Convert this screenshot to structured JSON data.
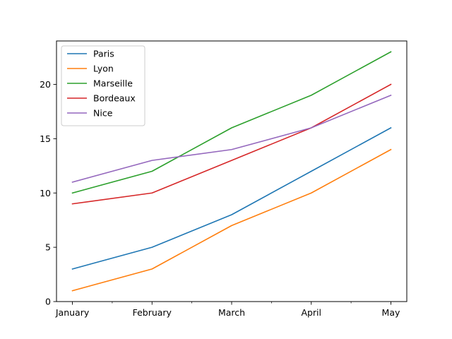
{
  "chart_data": {
    "type": "line",
    "title": "",
    "xlabel": "",
    "ylabel": "",
    "categories": [
      "January",
      "February",
      "March",
      "April",
      "May"
    ],
    "ylim": [
      0,
      24
    ],
    "yticks": [
      0,
      5,
      10,
      15,
      20
    ],
    "grid": false,
    "legend_position": "upper-left",
    "series": [
      {
        "name": "Paris",
        "color": "#1f77b4",
        "values": [
          3,
          5,
          8,
          12,
          16
        ]
      },
      {
        "name": "Lyon",
        "color": "#ff7f0e",
        "values": [
          1,
          3,
          7,
          10,
          14
        ]
      },
      {
        "name": "Marseille",
        "color": "#2ca02c",
        "values": [
          10,
          12,
          16,
          19,
          23
        ]
      },
      {
        "name": "Bordeaux",
        "color": "#d62728",
        "values": [
          9,
          10,
          13,
          16,
          20
        ]
      },
      {
        "name": "Nice",
        "color": "#9467bd",
        "values": [
          11,
          13,
          14,
          16,
          19
        ]
      }
    ]
  }
}
